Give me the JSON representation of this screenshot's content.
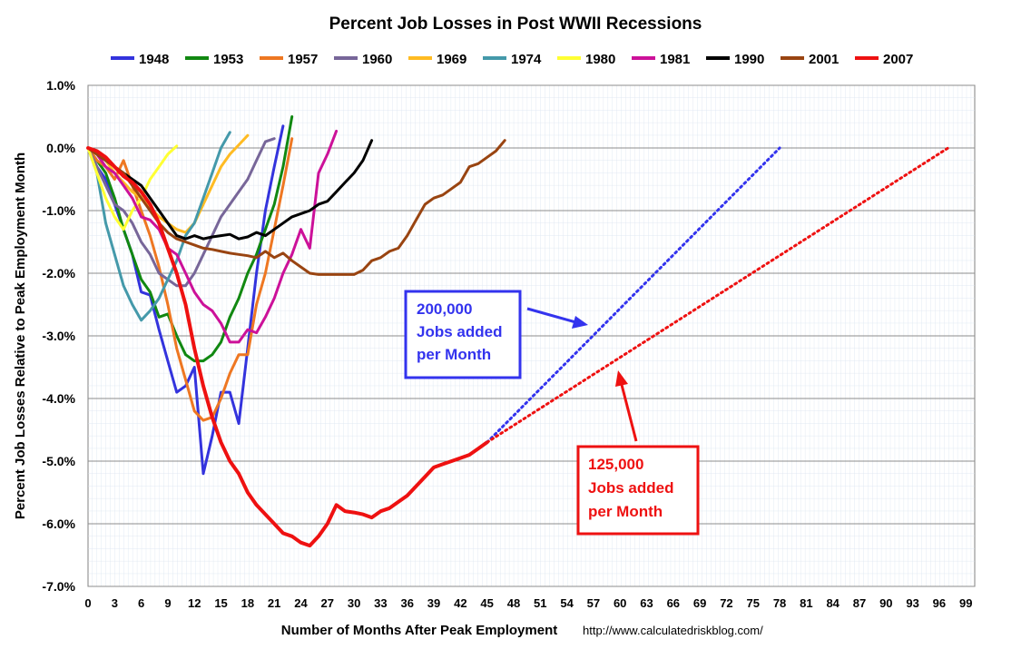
{
  "chart_data": {
    "type": "line",
    "title": "Percent Job Losses in Post WWII Recessions",
    "xlabel": "Number of Months After Peak Employment",
    "ylabel": "Percent Job Losses Relative to Peak Employment Month",
    "source": "http://www.calculatedriskblog.com/",
    "xlim": [
      0,
      100
    ],
    "ylim": [
      -7.0,
      1.0
    ],
    "x_ticks": [
      0,
      3,
      6,
      9,
      12,
      15,
      18,
      21,
      24,
      27,
      30,
      33,
      36,
      39,
      42,
      45,
      48,
      51,
      54,
      57,
      60,
      63,
      66,
      69,
      72,
      75,
      78,
      81,
      84,
      87,
      90,
      93,
      96,
      99
    ],
    "y_ticks": [
      1.0,
      0.0,
      -1.0,
      -2.0,
      -3.0,
      -4.0,
      -5.0,
      -6.0,
      -7.0
    ],
    "y_tick_labels": [
      "1.0%",
      "0.0%",
      "-1.0%",
      "-2.0%",
      "-3.0%",
      "-4.0%",
      "-5.0%",
      "-6.0%",
      "-7.0%"
    ],
    "grid": true,
    "legend_position": "top",
    "series": [
      {
        "name": "1948",
        "color": "#3333dd",
        "x": [
          0,
          1,
          2,
          3,
          4,
          5,
          6,
          7,
          8,
          9,
          10,
          11,
          12,
          13,
          14,
          15,
          16,
          17,
          18,
          19,
          20,
          21,
          22
        ],
        "y": [
          0,
          -0.3,
          -0.5,
          -0.9,
          -1.3,
          -1.7,
          -2.3,
          -2.35,
          -2.9,
          -3.4,
          -3.9,
          -3.8,
          -3.5,
          -5.2,
          -4.6,
          -3.9,
          -3.9,
          -4.4,
          -3.2,
          -2.0,
          -1.0,
          -0.3,
          0.35
        ]
      },
      {
        "name": "1953",
        "color": "#118811",
        "x": [
          0,
          1,
          2,
          3,
          4,
          5,
          6,
          7,
          8,
          9,
          10,
          11,
          12,
          13,
          14,
          15,
          16,
          17,
          18,
          19,
          20,
          21,
          22,
          23
        ],
        "y": [
          0,
          -0.2,
          -0.4,
          -0.8,
          -1.3,
          -1.7,
          -2.1,
          -2.3,
          -2.7,
          -2.65,
          -3.0,
          -3.3,
          -3.4,
          -3.4,
          -3.3,
          -3.1,
          -2.7,
          -2.4,
          -2.0,
          -1.7,
          -1.3,
          -0.9,
          -0.3,
          0.5
        ]
      },
      {
        "name": "1957",
        "color": "#ee7722",
        "x": [
          0,
          1,
          2,
          3,
          4,
          5,
          6,
          7,
          8,
          9,
          10,
          11,
          12,
          13,
          14,
          15,
          16,
          17,
          18,
          19,
          20,
          21,
          22,
          23
        ],
        "y": [
          0,
          -0.2,
          -0.3,
          -0.5,
          -0.2,
          -0.6,
          -1.0,
          -1.4,
          -1.9,
          -2.5,
          -3.2,
          -3.7,
          -4.2,
          -4.35,
          -4.3,
          -4.0,
          -3.6,
          -3.3,
          -3.3,
          -2.5,
          -2.0,
          -1.3,
          -0.6,
          0.15
        ]
      },
      {
        "name": "1960",
        "color": "#776699",
        "x": [
          0,
          1,
          2,
          3,
          4,
          5,
          6,
          7,
          8,
          9,
          10,
          11,
          12,
          13,
          14,
          15,
          16,
          17,
          18,
          19,
          20,
          21
        ],
        "y": [
          0,
          -0.3,
          -0.6,
          -0.9,
          -1.0,
          -1.2,
          -1.5,
          -1.7,
          -2.0,
          -2.1,
          -2.2,
          -2.2,
          -2.0,
          -1.7,
          -1.4,
          -1.1,
          -0.9,
          -0.7,
          -0.5,
          -0.2,
          0.1,
          0.15
        ]
      },
      {
        "name": "1969",
        "color": "#ffbb22",
        "x": [
          0,
          1,
          2,
          3,
          4,
          5,
          6,
          7,
          8,
          9,
          10,
          11,
          12,
          13,
          14,
          15,
          16,
          17,
          18
        ],
        "y": [
          0,
          -0.1,
          -0.2,
          -0.4,
          -0.55,
          -0.7,
          -0.8,
          -0.95,
          -1.1,
          -1.2,
          -1.3,
          -1.35,
          -1.2,
          -0.9,
          -0.6,
          -0.3,
          -0.1,
          0.05,
          0.2
        ]
      },
      {
        "name": "1974",
        "color": "#4499aa",
        "x": [
          0,
          1,
          2,
          3,
          4,
          5,
          6,
          7,
          8,
          9,
          10,
          11,
          12,
          13,
          14,
          15,
          16
        ],
        "y": [
          0,
          -0.4,
          -1.2,
          -1.7,
          -2.2,
          -2.5,
          -2.75,
          -2.6,
          -2.4,
          -2.1,
          -1.8,
          -1.4,
          -1.2,
          -0.8,
          -0.4,
          0.0,
          0.25
        ]
      },
      {
        "name": "1980",
        "color": "#ffff33",
        "x": [
          0,
          1,
          2,
          3,
          4,
          5,
          6,
          7,
          8,
          9,
          10
        ],
        "y": [
          0,
          -0.4,
          -0.8,
          -1.1,
          -1.3,
          -1.0,
          -0.8,
          -0.5,
          -0.3,
          -0.1,
          0.03
        ]
      },
      {
        "name": "1981",
        "color": "#cc1199",
        "x": [
          0,
          1,
          2,
          3,
          4,
          5,
          6,
          7,
          8,
          9,
          10,
          11,
          12,
          13,
          14,
          15,
          16,
          17,
          18,
          19,
          20,
          21,
          22,
          23,
          24,
          25,
          26,
          27,
          28
        ],
        "y": [
          0,
          -0.1,
          -0.3,
          -0.4,
          -0.6,
          -0.8,
          -1.1,
          -1.15,
          -1.3,
          -1.6,
          -1.7,
          -2.0,
          -2.3,
          -2.5,
          -2.6,
          -2.8,
          -3.1,
          -3.1,
          -2.9,
          -2.95,
          -2.7,
          -2.4,
          -2.0,
          -1.7,
          -1.3,
          -1.6,
          -0.4,
          -0.1,
          0.27
        ]
      },
      {
        "name": "1990",
        "color": "#000000",
        "x": [
          0,
          1,
          2,
          3,
          4,
          5,
          6,
          7,
          8,
          9,
          10,
          11,
          12,
          13,
          14,
          15,
          16,
          17,
          18,
          19,
          20,
          21,
          22,
          23,
          24,
          25,
          26,
          27,
          28,
          29,
          30,
          31,
          32
        ],
        "y": [
          0,
          -0.1,
          -0.2,
          -0.3,
          -0.4,
          -0.5,
          -0.6,
          -0.8,
          -1.0,
          -1.2,
          -1.4,
          -1.45,
          -1.4,
          -1.45,
          -1.42,
          -1.4,
          -1.38,
          -1.45,
          -1.42,
          -1.35,
          -1.4,
          -1.3,
          -1.2,
          -1.1,
          -1.05,
          -1.0,
          -0.9,
          -0.85,
          -0.7,
          -0.55,
          -0.4,
          -0.2,
          0.12
        ]
      },
      {
        "name": "2001",
        "color": "#994411",
        "x": [
          0,
          1,
          2,
          3,
          4,
          5,
          6,
          7,
          8,
          9,
          10,
          11,
          12,
          13,
          14,
          15,
          16,
          17,
          18,
          19,
          20,
          21,
          22,
          23,
          24,
          25,
          26,
          27,
          28,
          29,
          30,
          31,
          32,
          33,
          34,
          35,
          36,
          37,
          38,
          39,
          40,
          41,
          42,
          43,
          44,
          45,
          46,
          47
        ],
        "y": [
          0,
          -0.1,
          -0.2,
          -0.3,
          -0.4,
          -0.6,
          -0.8,
          -1.0,
          -1.2,
          -1.35,
          -1.45,
          -1.5,
          -1.55,
          -1.6,
          -1.62,
          -1.65,
          -1.68,
          -1.7,
          -1.72,
          -1.75,
          -1.65,
          -1.75,
          -1.68,
          -1.8,
          -1.9,
          -2.0,
          -2.02,
          -2.02,
          -2.02,
          -2.02,
          -2.02,
          -1.95,
          -1.8,
          -1.75,
          -1.65,
          -1.6,
          -1.4,
          -1.15,
          -0.9,
          -0.8,
          -0.75,
          -0.65,
          -0.55,
          -0.3,
          -0.25,
          -0.15,
          -0.05,
          0.12
        ]
      },
      {
        "name": "2007",
        "color": "#ee1111",
        "x": [
          0,
          1,
          2,
          3,
          4,
          5,
          6,
          7,
          8,
          9,
          10,
          11,
          12,
          13,
          14,
          15,
          16,
          17,
          18,
          19,
          20,
          21,
          22,
          23,
          24,
          25,
          26,
          27,
          28,
          29,
          30,
          31,
          32,
          33,
          34,
          35,
          36,
          37,
          38,
          39,
          40,
          41,
          42,
          43,
          44,
          45
        ],
        "y": [
          0,
          -0.05,
          -0.15,
          -0.3,
          -0.45,
          -0.55,
          -0.7,
          -0.9,
          -1.2,
          -1.6,
          -2.0,
          -2.5,
          -3.2,
          -3.8,
          -4.3,
          -4.7,
          -5.0,
          -5.2,
          -5.5,
          -5.7,
          -5.85,
          -6.0,
          -6.15,
          -6.2,
          -6.3,
          -6.35,
          -6.2,
          -6.0,
          -5.7,
          -5.8,
          -5.82,
          -5.85,
          -5.9,
          -5.8,
          -5.75,
          -5.65,
          -5.55,
          -5.4,
          -5.25,
          -5.1,
          -5.05,
          -5.0,
          -4.95,
          -4.9,
          -4.8,
          -4.7
        ]
      }
    ],
    "projections": [
      {
        "name": "200,000 Jobs added per Month",
        "color": "#3333ee",
        "x": [
          45,
          78
        ],
        "y": [
          -4.7,
          0.0
        ]
      },
      {
        "name": "125,000 Jobs added per Month",
        "color": "#ee1111",
        "x": [
          45,
          97
        ],
        "y": [
          -4.7,
          0.0
        ]
      }
    ],
    "annotations": [
      {
        "lines": [
          "200,000",
          "Jobs added",
          "per Month"
        ],
        "color": "#3333ee"
      },
      {
        "lines": [
          "125,000",
          "Jobs added",
          "per Month"
        ],
        "color": "#ee1111"
      }
    ]
  }
}
